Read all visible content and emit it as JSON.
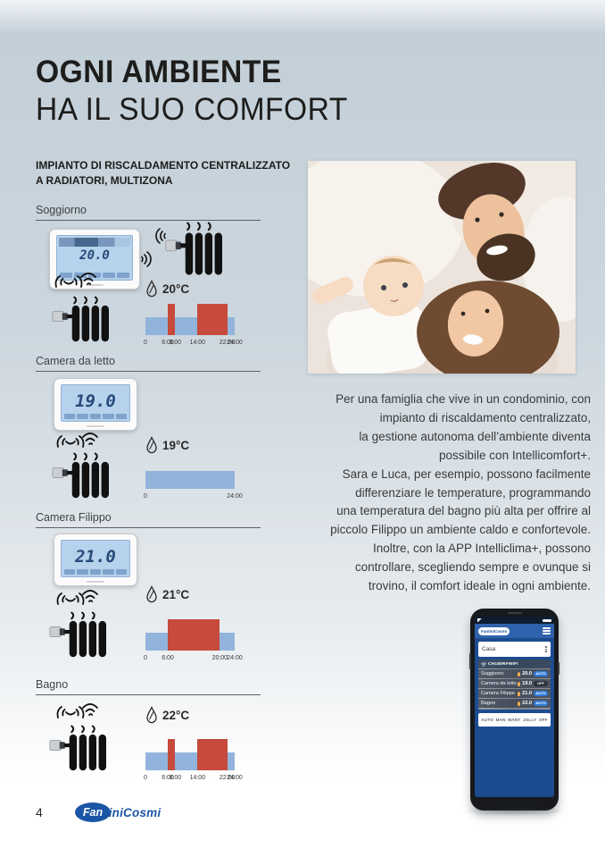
{
  "page": {
    "number": "4",
    "title": {
      "line1": "OGNI AMBIENTE",
      "line2": "HA IL SUO COMFORT"
    },
    "subtitle": {
      "line1": "IMPIANTO DI RISCALDAMENTO CENTRALIZZATO",
      "line2": "A RADIATORI, MULTIZONA"
    }
  },
  "zones": [
    {
      "label": "Soggiorno",
      "thermostat_display": "20.0",
      "temp_label": "20°C"
    },
    {
      "label": "Camera da letto",
      "thermostat_display": "19.0",
      "temp_label": "19°C"
    },
    {
      "label": "Camera Filippo",
      "thermostat_display": "21.0",
      "temp_label": "21°C"
    },
    {
      "label": "Bagno",
      "temp_label": "22°C"
    }
  ],
  "chart_data": [
    {
      "zone": "Soggiorno",
      "type": "schedule-band",
      "x_unit": "hours",
      "xlim": [
        0,
        24
      ],
      "base_band": [
        0,
        24
      ],
      "comfort_bands": [
        [
          6,
          8
        ],
        [
          14,
          22
        ]
      ],
      "ticks": [
        [
          0,
          "0"
        ],
        [
          6,
          "6:00"
        ],
        [
          8,
          "8:00"
        ],
        [
          14,
          "14:00"
        ],
        [
          22,
          "22:00"
        ],
        [
          24,
          "24:00"
        ]
      ]
    },
    {
      "zone": "Camera da letto",
      "type": "schedule-band",
      "x_unit": "hours",
      "xlim": [
        0,
        24
      ],
      "base_band": [
        0,
        24
      ],
      "comfort_bands": [],
      "ticks": [
        [
          0,
          "0"
        ],
        [
          24,
          "24:00"
        ]
      ]
    },
    {
      "zone": "Camera Filippo",
      "type": "schedule-band",
      "x_unit": "hours",
      "xlim": [
        0,
        24
      ],
      "base_band": [
        0,
        24
      ],
      "comfort_bands": [
        [
          6,
          20
        ]
      ],
      "ticks": [
        [
          0,
          "0"
        ],
        [
          6,
          "6:00"
        ],
        [
          20,
          "20:00"
        ],
        [
          24,
          "24:00"
        ]
      ]
    },
    {
      "zone": "Bagno",
      "type": "schedule-band",
      "x_unit": "hours",
      "xlim": [
        0,
        24
      ],
      "base_band": [
        0,
        24
      ],
      "comfort_bands": [
        [
          6,
          8
        ],
        [
          14,
          22
        ]
      ],
      "ticks": [
        [
          0,
          "0"
        ],
        [
          6,
          "6:00"
        ],
        [
          8,
          "8:00"
        ],
        [
          14,
          "14:00"
        ],
        [
          22,
          "22:00"
        ],
        [
          24,
          "24:00"
        ]
      ]
    }
  ],
  "paragraph": {
    "lines": [
      "Per una famiglia che vive in un condominio, con",
      "impianto di riscaldamento centralizzato,",
      "la gestione autonoma dell’ambiente diventa",
      "possibile con Intellicomfort+.",
      "Sara e Luca, per esempio, possono facilmente",
      "differenziare le temperature, programmando",
      "una temperatura del bagno più alta per offrire al",
      "piccolo Filippo un ambiente caldo e confortevole.",
      "Inoltre, con la APP Intelliclima+, possono",
      "controllare, scegliendo sempre e ovunque si",
      "trovino, il comfort ideale in ogni ambiente."
    ]
  },
  "phone": {
    "app_name": "FantiniCosmi",
    "home_label": "Casa",
    "device_label": "CH180RFWIFI",
    "rows": [
      {
        "name": "Soggiorno",
        "temp": "20.0",
        "mode": "AUTO"
      },
      {
        "name": "Camera da letto",
        "temp": "19.0",
        "mode": "OFF"
      },
      {
        "name": "Camera Filippo",
        "temp": "21.0",
        "mode": "AUTO"
      },
      {
        "name": "Bagno",
        "temp": "22.0",
        "mode": "AUTO"
      }
    ],
    "mode_buttons": [
      "AUTO",
      "MAN",
      "MANT",
      "JOLLY",
      "OFF"
    ]
  },
  "footer": {
    "logo_bold": "Fan",
    "logo_rest": "tiniCosmi"
  },
  "colors": {
    "chart_base": "#92b4dc",
    "chart_comfort": "#c64b3c",
    "lcd_screen": "#b6d2ec",
    "phone_blue": "#1d4b8f",
    "brand_blue": "#1b55a5",
    "title_text": "#1d1d1b",
    "body_text": "#3a3a3a"
  }
}
